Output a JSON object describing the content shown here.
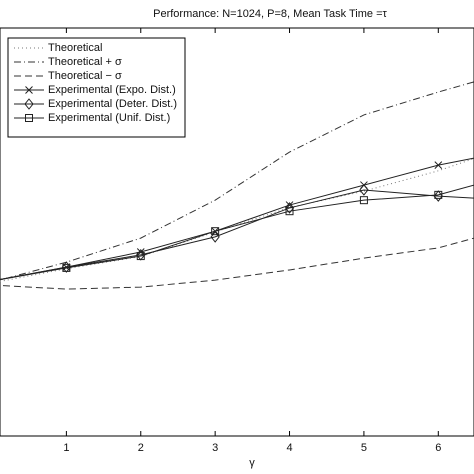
{
  "chart_data": {
    "type": "line",
    "title": "Performance: N=1024, P=8, Mean Task Time =τ",
    "x_label": "γ",
    "xlim": [
      0,
      6.48
    ],
    "ylim": [
      0,
      1
    ],
    "xticks": [
      1,
      2,
      3,
      4,
      5,
      6
    ],
    "legend": "upper left",
    "series": [
      {
        "name": "Theoretical",
        "color": "#777777",
        "dash": "1 3",
        "marker": "none",
        "x": [
          0,
          1,
          2,
          3,
          4,
          5,
          6,
          6.48
        ],
        "values": [
          0.375,
          0.41,
          0.44,
          0.5,
          0.56,
          0.6,
          0.65,
          0.68
        ]
      },
      {
        "name": "Theoretical + σ",
        "color": "#333333",
        "dash": "7 3 1 3",
        "marker": "none",
        "x": [
          0,
          1,
          2,
          3,
          4,
          5,
          6,
          6.48
        ],
        "values": [
          0.377,
          0.426,
          0.485,
          0.578,
          0.696,
          0.787,
          0.843,
          0.868
        ]
      },
      {
        "name": "Theoretical − σ",
        "color": "#333333",
        "dash": "7 4",
        "marker": "none",
        "x": [
          0,
          1,
          2,
          3,
          4,
          5,
          6,
          6.48
        ],
        "values": [
          0.37,
          0.36,
          0.365,
          0.382,
          0.407,
          0.436,
          0.461,
          0.485
        ]
      },
      {
        "name": "Experimental (Expo. Dist.)",
        "color": "#222222",
        "dash": "none",
        "marker": "x",
        "x": [
          0,
          1,
          2,
          3,
          4,
          5,
          6,
          6.48
        ],
        "values": [
          0.38,
          0.414,
          0.451,
          0.502,
          0.566,
          0.615,
          0.664,
          0.681
        ]
      },
      {
        "name": "Experimental (Deter. Dist.)",
        "color": "#222222",
        "dash": "none",
        "marker": "diamond",
        "x": [
          0,
          1,
          2,
          3,
          4,
          5,
          6,
          6.48
        ],
        "values": [
          0.38,
          0.414,
          0.444,
          0.488,
          0.559,
          0.603,
          0.588,
          0.583
        ]
      },
      {
        "name": "Experimental (Unif. Dist.)",
        "color": "#222222",
        "dash": "none",
        "marker": "square",
        "x": [
          0,
          1,
          2,
          3,
          4,
          5,
          6,
          6.48
        ],
        "values": [
          0.38,
          0.412,
          0.441,
          0.502,
          0.551,
          0.578,
          0.591,
          0.615
        ]
      }
    ]
  }
}
